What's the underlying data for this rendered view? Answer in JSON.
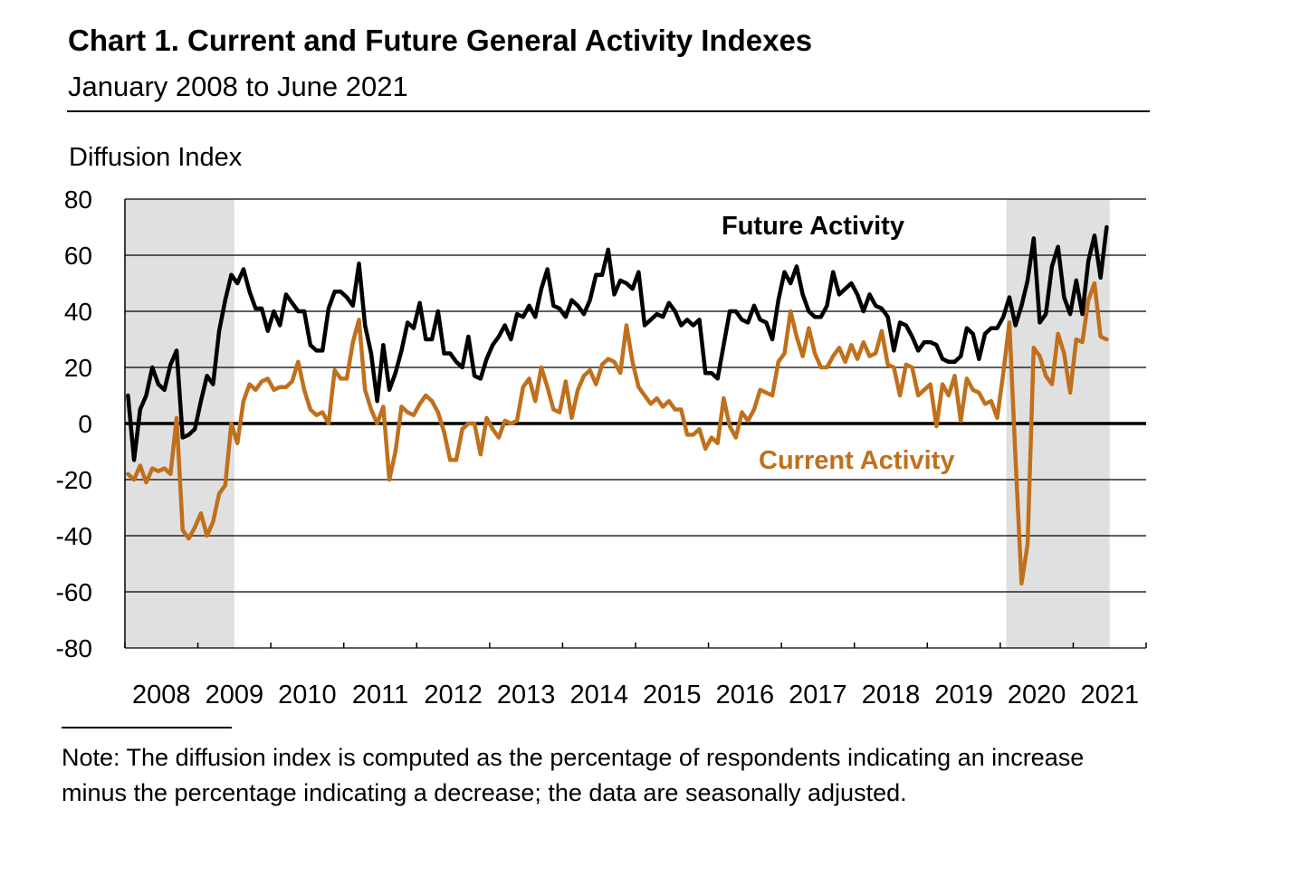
{
  "chart_data": {
    "type": "line",
    "title": "Chart 1. Current and Future General Activity Indexes",
    "subtitle": "January 2008 to June 2021",
    "ylabel": "Diffusion Index",
    "xlabel": "",
    "ylim": [
      -80,
      80
    ],
    "yticks": [
      80,
      60,
      40,
      20,
      0,
      -20,
      -40,
      -60,
      -80
    ],
    "xticks": [
      "2008",
      "2009",
      "2010",
      "2011",
      "2012",
      "2013",
      "2014",
      "2015",
      "2016",
      "2017",
      "2018",
      "2019",
      "2020",
      "2021"
    ],
    "x_start": "2008-01",
    "x_end": "2021-06",
    "grid": true,
    "shaded_periods": [
      {
        "start": "2008-01",
        "end": "2009-06"
      },
      {
        "start": "2020-02",
        "end": "2021-06"
      }
    ],
    "series": [
      {
        "name": "Future Activity",
        "color": "#000000",
        "values": [
          10,
          -13,
          5,
          10,
          20,
          14,
          12,
          21,
          26,
          -5,
          -4,
          -2,
          8,
          17,
          14,
          33,
          44,
          53,
          50,
          55,
          47,
          41,
          41,
          33,
          40,
          35,
          46,
          43,
          40,
          40,
          28,
          26,
          26,
          41,
          47,
          47,
          45,
          42,
          57,
          35,
          25,
          8,
          28,
          12,
          18,
          26,
          36,
          34,
          43,
          30,
          30,
          40,
          25,
          25,
          22,
          20,
          31,
          17,
          16,
          23,
          28,
          31,
          35,
          30,
          39,
          38,
          42,
          38,
          48,
          55,
          42,
          41,
          38,
          44,
          42,
          39,
          44,
          53,
          53,
          62,
          46,
          51,
          50,
          48,
          54,
          35,
          37,
          39,
          38,
          43,
          40,
          35,
          37,
          35,
          37,
          18,
          18,
          16,
          28,
          40,
          40,
          37,
          36,
          42,
          37,
          36,
          30,
          44,
          54,
          50,
          56,
          46,
          40,
          38,
          38,
          42,
          54,
          46,
          48,
          50,
          46,
          40,
          46,
          42,
          41,
          38,
          26,
          36,
          35,
          31,
          26,
          29,
          29,
          28,
          23,
          22,
          22,
          24,
          34,
          32,
          23,
          32,
          34,
          34,
          38,
          45,
          35,
          42,
          51,
          66,
          36,
          39,
          56,
          63,
          45,
          39,
          51,
          39,
          58,
          67,
          52,
          70
        ]
      },
      {
        "name": "Current Activity",
        "color": "#c0701c",
        "values": [
          -18,
          -20,
          -15,
          -21,
          -16,
          -17,
          -16,
          -18,
          2,
          -38,
          -41,
          -37,
          -32,
          -40,
          -35,
          -25,
          -22,
          0,
          -7,
          8,
          14,
          12,
          15,
          16,
          12,
          13,
          13,
          15,
          22,
          12,
          5,
          3,
          4,
          0,
          19,
          16,
          16,
          29,
          37,
          12,
          5,
          0,
          6,
          -20,
          -10,
          6,
          4,
          3,
          7,
          10,
          8,
          4,
          -3,
          -13,
          -13,
          -2,
          0,
          0,
          -11,
          2,
          -2,
          -5,
          1,
          0,
          1,
          13,
          16,
          8,
          20,
          13,
          5,
          4,
          15,
          2,
          12,
          17,
          19,
          14,
          21,
          23,
          22,
          18,
          35,
          22,
          13,
          10,
          7,
          9,
          6,
          8,
          5,
          5,
          -4,
          -4,
          -2,
          -9,
          -5,
          -7,
          9,
          -1,
          -5,
          4,
          1,
          5,
          12,
          11,
          10,
          22,
          25,
          40,
          31,
          24,
          34,
          25,
          20,
          20,
          24,
          27,
          22,
          28,
          23,
          29,
          24,
          25,
          33,
          21,
          20,
          10,
          21,
          20,
          10,
          12,
          14,
          -1,
          14,
          10,
          17,
          1,
          16,
          12,
          11,
          7,
          8,
          2,
          18,
          36,
          -12,
          -57,
          -43,
          27,
          24,
          17,
          14,
          32,
          25,
          11,
          30,
          29,
          44,
          50,
          31,
          30
        ]
      }
    ],
    "annotations": [
      "Future Activity",
      "Current Activity"
    ],
    "note": "Note: The diffusion index is computed as the percentage of respondents indicating an increase minus the percentage indicating a decrease; the data are seasonally adjusted."
  }
}
